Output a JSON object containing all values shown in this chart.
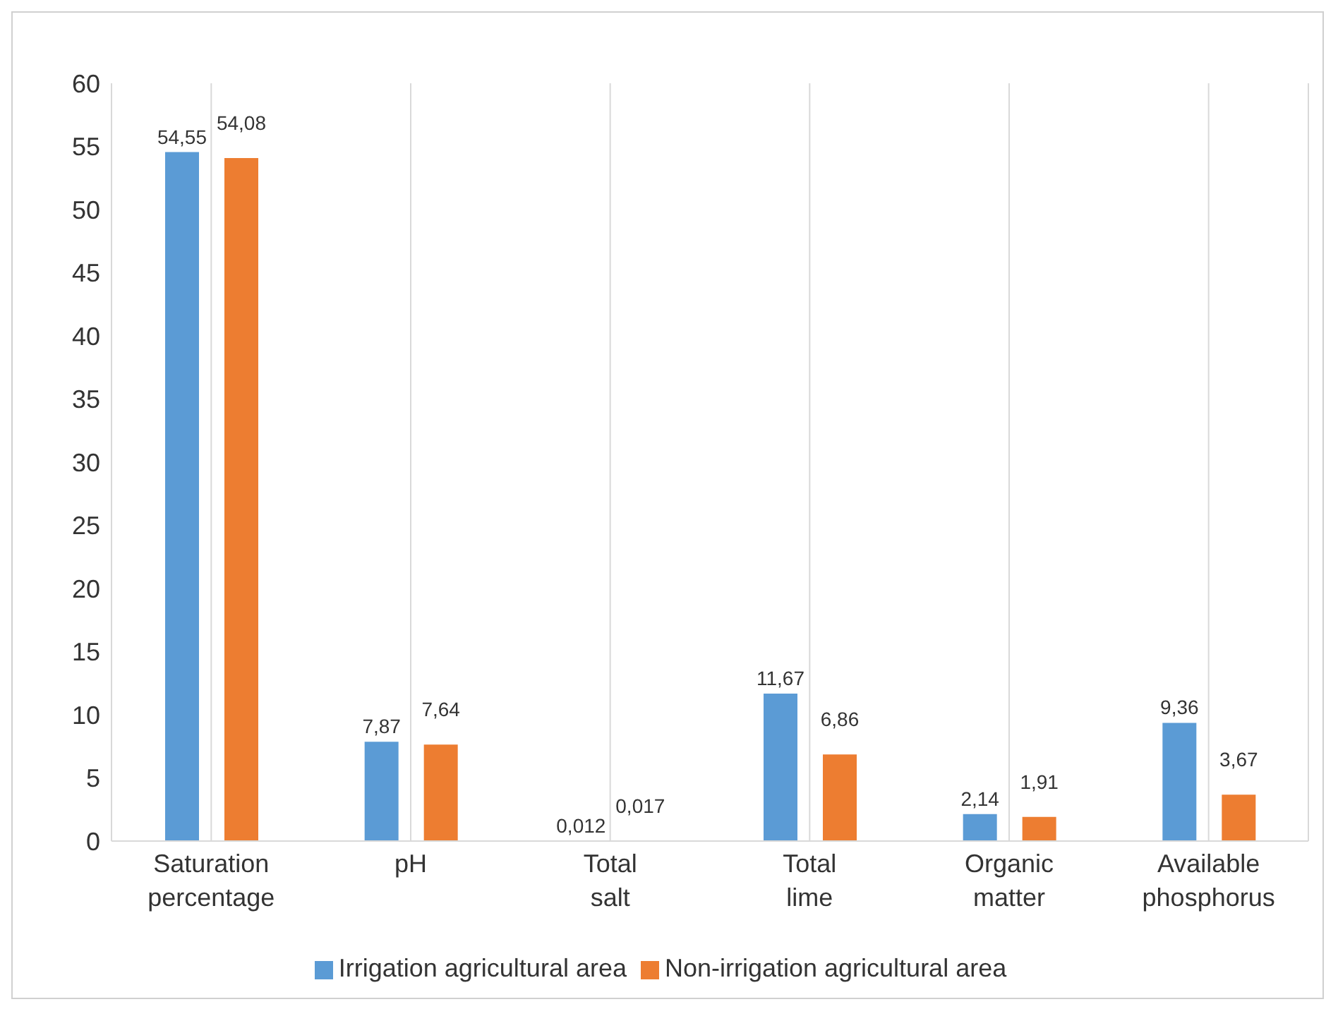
{
  "chart_data": {
    "type": "bar",
    "categories": [
      "Saturation percentage",
      "pH",
      "Total salt",
      "Total lime",
      "Organic matter",
      "Available phosphorus"
    ],
    "series": [
      {
        "name": "Irrigation agricultural area",
        "color": "#5b9bd5",
        "values": [
          54.55,
          7.87,
          0.012,
          11.67,
          2.14,
          9.36
        ],
        "value_labels": [
          "54,55",
          "7,87",
          "0,012",
          "11,67",
          "2,14",
          "9,36"
        ]
      },
      {
        "name": "Non-irrigation agricultural area",
        "color": "#ed7d31",
        "values": [
          54.08,
          7.64,
          0.017,
          6.86,
          1.91,
          3.67
        ],
        "value_labels": [
          "54,08",
          "7,64",
          "0,017",
          "6,86",
          "1,91",
          "3,67"
        ]
      }
    ],
    "ylim": [
      0,
      60
    ],
    "yticks": [
      0,
      5,
      10,
      15,
      20,
      25,
      30,
      35,
      40,
      45,
      50,
      55,
      60
    ],
    "grid": "x",
    "legend": "bottom"
  }
}
